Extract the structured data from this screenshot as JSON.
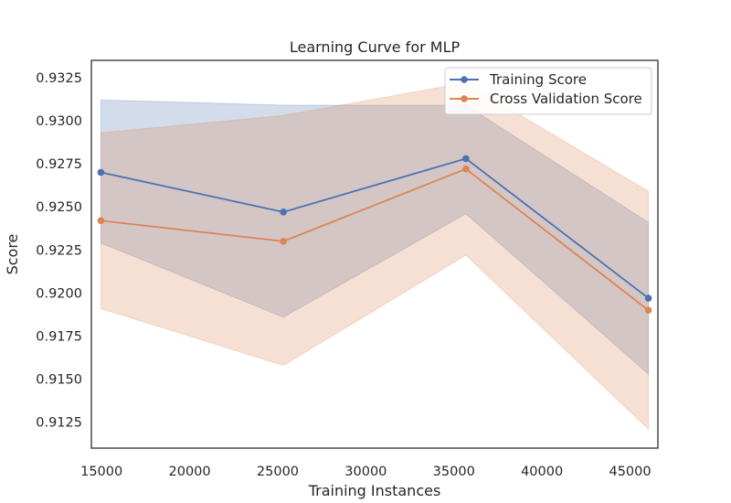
{
  "chart_data": {
    "type": "line",
    "title": "Learning Curve for MLP",
    "xlabel": "Training Instances",
    "ylabel": "Score",
    "x": [
      14960,
      25320,
      35680,
      46040
    ],
    "xlim": [
      14420,
      46580
    ],
    "ylim": [
      0.911,
      0.9335
    ],
    "xticks": [
      15000,
      20000,
      25000,
      30000,
      35000,
      40000,
      45000
    ],
    "xtick_labels": [
      "15000",
      "20000",
      "25000",
      "30000",
      "35000",
      "40000",
      "45000"
    ],
    "yticks": [
      0.9125,
      0.915,
      0.9175,
      0.92,
      0.9225,
      0.925,
      0.9275,
      0.93,
      0.9325
    ],
    "ytick_labels": [
      "0.9125",
      "0.9150",
      "0.9175",
      "0.9200",
      "0.9225",
      "0.9250",
      "0.9275",
      "0.9300",
      "0.9325"
    ],
    "grid": false,
    "legend_position": "top-right",
    "series": [
      {
        "name": "Training Score",
        "color": "#4C72B0",
        "values": [
          0.927,
          0.9247,
          0.9278,
          0.9197
        ],
        "band_upper": [
          0.9312,
          0.9309,
          0.9309,
          0.9241
        ],
        "band_lower": [
          0.9229,
          0.9186,
          0.9246,
          0.9153
        ]
      },
      {
        "name": "Cross Validation Score",
        "color": "#DD8452",
        "values": [
          0.9242,
          0.923,
          0.9272,
          0.919
        ],
        "band_upper": [
          0.9293,
          0.9303,
          0.9322,
          0.9259
        ],
        "band_lower": [
          0.9191,
          0.9158,
          0.9222,
          0.9121
        ]
      }
    ]
  }
}
